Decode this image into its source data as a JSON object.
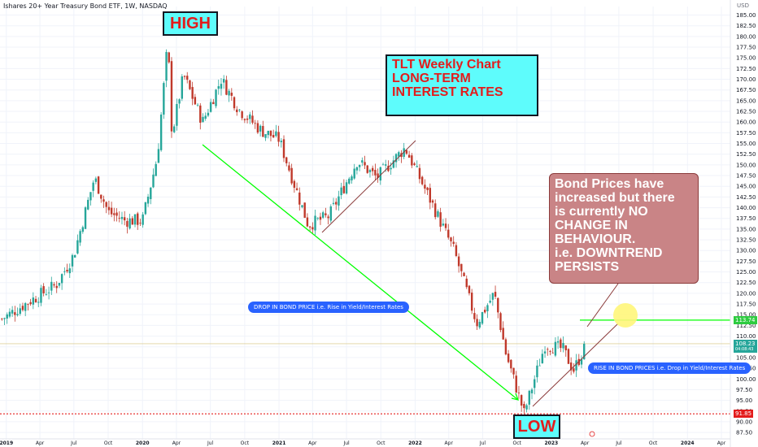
{
  "header": {
    "title": "Ishares 20+ Year Treasury Bond ETF, 1W, NASDAQ",
    "currency": "USD"
  },
  "annotations": {
    "high_label": "HIGH",
    "low_label": "LOW",
    "title_lines": [
      "TLT Weekly Chart",
      "",
      "LONG-TERM",
      "INTEREST RATES"
    ],
    "callout_lines": [
      "Bond Prices have",
      "increased but there",
      "is currently NO",
      "CHANGE IN",
      "BEHAVIOUR.",
      "",
      "i.e. DOWNTREND",
      "PERSISTS"
    ],
    "drop_note": "DROP IN BOND PRICE i.e. Rise in Yield/Interest Rates",
    "rise_note": "RISE IN BOND PRICES i.e. Drop in Yield/Interest Rates"
  },
  "price_tags": {
    "resistance": "113.74",
    "last": "108.23",
    "last_sub": "04:08:43",
    "low": "91.85"
  },
  "colors": {
    "up": "#26a69a",
    "down": "#c0392b",
    "trend_green": "#00ff00",
    "trend_line": "#8b3b3b",
    "annotation_fill": "#5efcfc",
    "annotation_text": "#e31c1c",
    "pill": "#2962ff",
    "callout": "#c98486",
    "marker": "#fff67a"
  },
  "chart_data": {
    "type": "candlestick",
    "interval": "1W",
    "x_ticks": [
      "2019",
      "Apr",
      "Jul",
      "Oct",
      "2020",
      "Apr",
      "Jul",
      "Oct",
      "2021",
      "Apr",
      "Jul",
      "Oct",
      "2022",
      "Apr",
      "Jul",
      "Oct",
      "2023",
      "Apr",
      "Jul",
      "Oct",
      "2024",
      "Apr"
    ],
    "x_tick_dates": [
      "2019-01-01",
      "2019-04-01",
      "2019-07-01",
      "2019-10-01",
      "2020-01-01",
      "2020-04-01",
      "2020-07-01",
      "2020-10-01",
      "2021-01-01",
      "2021-04-01",
      "2021-07-01",
      "2021-10-01",
      "2022-01-01",
      "2022-04-01",
      "2022-07-01",
      "2022-10-01",
      "2023-01-01",
      "2023-04-01",
      "2023-07-01",
      "2023-10-01",
      "2024-01-01",
      "2024-04-01"
    ],
    "y_ticks": [
      87.5,
      90,
      92.5,
      95,
      97.5,
      100,
      102.5,
      105,
      107.5,
      110,
      112.5,
      115,
      117.5,
      120,
      122.5,
      125,
      127.5,
      130,
      132.5,
      135,
      137.5,
      140,
      142.5,
      145,
      147.5,
      150,
      152.5,
      155,
      157.5,
      160,
      162.5,
      165,
      167.5,
      170,
      172.5,
      175,
      177.5,
      180,
      182.5,
      185
    ],
    "ylim": [
      86,
      187
    ],
    "x_range": [
      "2018-12-15",
      "2024-04-25"
    ],
    "key_levels": [
      {
        "name": "resistance",
        "value": 113.74
      },
      {
        "name": "last",
        "value": 108.23
      },
      {
        "name": "low",
        "value": 91.85
      }
    ],
    "price_path": [
      {
        "date": "2018-12-20",
        "close": 114
      },
      {
        "date": "2019-03-01",
        "close": 118
      },
      {
        "date": "2019-05-15",
        "close": 122
      },
      {
        "date": "2019-07-01",
        "close": 129
      },
      {
        "date": "2019-08-25",
        "close": 147
      },
      {
        "date": "2019-10-01",
        "close": 139
      },
      {
        "date": "2019-11-15",
        "close": 137
      },
      {
        "date": "2020-01-01",
        "close": 137
      },
      {
        "date": "2020-02-10",
        "close": 152
      },
      {
        "date": "2020-03-09",
        "close": 179
      },
      {
        "date": "2020-03-20",
        "close": 157
      },
      {
        "date": "2020-04-20",
        "close": 171
      },
      {
        "date": "2020-06-10",
        "close": 160
      },
      {
        "date": "2020-07-30",
        "close": 170
      },
      {
        "date": "2020-09-15",
        "close": 163
      },
      {
        "date": "2020-11-15",
        "close": 158
      },
      {
        "date": "2021-01-01",
        "close": 156
      },
      {
        "date": "2021-03-20",
        "close": 136
      },
      {
        "date": "2021-05-15",
        "close": 138
      },
      {
        "date": "2021-07-30",
        "close": 151
      },
      {
        "date": "2021-09-20",
        "close": 147
      },
      {
        "date": "2021-12-05",
        "close": 154
      },
      {
        "date": "2022-02-15",
        "close": 141
      },
      {
        "date": "2022-04-15",
        "close": 130
      },
      {
        "date": "2022-06-15",
        "close": 113
      },
      {
        "date": "2022-08-01",
        "close": 120
      },
      {
        "date": "2022-09-01",
        "close": 106
      },
      {
        "date": "2022-10-20",
        "close": 92
      },
      {
        "date": "2022-12-15",
        "close": 108
      },
      {
        "date": "2023-02-01",
        "close": 107
      },
      {
        "date": "2023-03-01",
        "close": 102
      },
      {
        "date": "2023-04-05",
        "close": 108
      }
    ]
  }
}
